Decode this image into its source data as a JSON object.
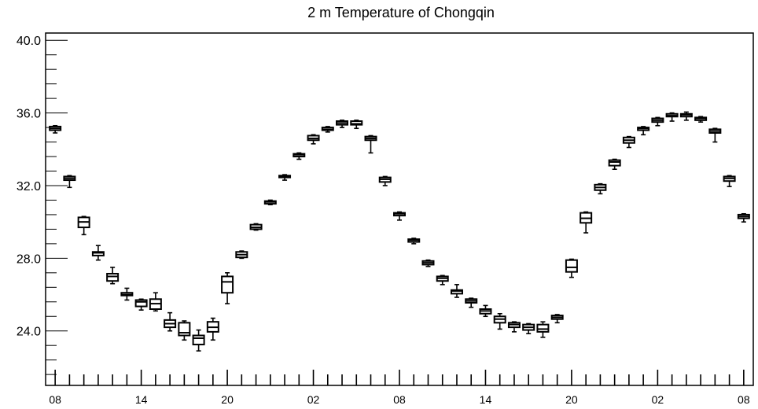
{
  "chart_data": {
    "type": "boxplot",
    "title": "2 m Temperature of Chongqin",
    "xlabel": "",
    "ylabel": "",
    "ylim": [
      21.0,
      40.4
    ],
    "y_major_ticks": [
      24.0,
      28.0,
      32.0,
      36.0,
      40.0
    ],
    "y_minor_step": 0.8,
    "x_tick_labels": [
      "08",
      "14",
      "20",
      "02",
      "08",
      "14",
      "20",
      "02",
      "08"
    ],
    "x_tick_positions_hours": [
      0,
      18,
      36,
      54,
      72,
      90,
      108,
      126,
      144
    ],
    "x_range_hours": [
      -2,
      146
    ],
    "x_minor_step_hours": 3,
    "grid": false,
    "legend": "none",
    "series_color": "#000000",
    "boxes": [
      {
        "t": 0,
        "low": 34.9,
        "q1": 35.05,
        "median": 35.15,
        "q3": 35.25,
        "high": 35.3
      },
      {
        "t": 3,
        "low": 31.9,
        "q1": 32.3,
        "median": 32.4,
        "q3": 32.5,
        "high": 32.55
      },
      {
        "t": 6,
        "low": 29.3,
        "q1": 29.7,
        "median": 30.0,
        "q3": 30.25,
        "high": 30.3
      },
      {
        "t": 9,
        "low": 27.9,
        "q1": 28.15,
        "median": 28.3,
        "q3": 28.35,
        "high": 28.7
      },
      {
        "t": 12,
        "low": 26.6,
        "q1": 26.75,
        "median": 27.0,
        "q3": 27.15,
        "high": 27.5
      },
      {
        "t": 15,
        "low": 25.7,
        "q1": 25.95,
        "median": 26.0,
        "q3": 26.1,
        "high": 26.35
      },
      {
        "t": 18,
        "low": 25.15,
        "q1": 25.35,
        "median": 25.6,
        "q3": 25.7,
        "high": 25.75
      },
      {
        "t": 21,
        "low": 25.1,
        "q1": 25.2,
        "median": 25.5,
        "q3": 25.75,
        "high": 26.1
      },
      {
        "t": 24,
        "low": 24.0,
        "q1": 24.2,
        "median": 24.4,
        "q3": 24.6,
        "high": 25.0
      },
      {
        "t": 27,
        "low": 23.5,
        "q1": 23.75,
        "median": 23.9,
        "q3": 24.45,
        "high": 24.55
      },
      {
        "t": 30,
        "low": 22.9,
        "q1": 23.25,
        "median": 23.6,
        "q3": 23.75,
        "high": 24.05
      },
      {
        "t": 33,
        "low": 23.5,
        "q1": 23.95,
        "median": 24.2,
        "q3": 24.5,
        "high": 24.7
      },
      {
        "t": 36,
        "low": 25.5,
        "q1": 26.1,
        "median": 26.7,
        "q3": 27.0,
        "high": 27.2
      },
      {
        "t": 39,
        "low": 28.0,
        "q1": 28.05,
        "median": 28.2,
        "q3": 28.35,
        "high": 28.4
      },
      {
        "t": 42,
        "low": 29.55,
        "q1": 29.6,
        "median": 29.7,
        "q3": 29.85,
        "high": 29.9
      },
      {
        "t": 45,
        "low": 30.95,
        "q1": 31.0,
        "median": 31.1,
        "q3": 31.15,
        "high": 31.2
      },
      {
        "t": 48,
        "low": 32.3,
        "q1": 32.45,
        "median": 32.5,
        "q3": 32.55,
        "high": 32.6
      },
      {
        "t": 51,
        "low": 33.45,
        "q1": 33.6,
        "median": 33.7,
        "q3": 33.75,
        "high": 33.8
      },
      {
        "t": 54,
        "low": 34.3,
        "q1": 34.5,
        "median": 34.6,
        "q3": 34.75,
        "high": 34.8
      },
      {
        "t": 57,
        "low": 34.95,
        "q1": 35.05,
        "median": 35.1,
        "q3": 35.2,
        "high": 35.25
      },
      {
        "t": 60,
        "low": 35.2,
        "q1": 35.35,
        "median": 35.45,
        "q3": 35.55,
        "high": 35.6
      },
      {
        "t": 63,
        "low": 35.15,
        "q1": 35.35,
        "median": 35.4,
        "q3": 35.55,
        "high": 35.6
      },
      {
        "t": 66,
        "low": 33.8,
        "q1": 34.5,
        "median": 34.6,
        "q3": 34.7,
        "high": 34.75
      },
      {
        "t": 69,
        "low": 32.0,
        "q1": 32.2,
        "median": 32.35,
        "q3": 32.45,
        "high": 32.5
      },
      {
        "t": 72,
        "low": 30.1,
        "q1": 30.35,
        "median": 30.45,
        "q3": 30.5,
        "high": 30.55
      },
      {
        "t": 75,
        "low": 28.8,
        "q1": 28.9,
        "median": 29.0,
        "q3": 29.05,
        "high": 29.1
      },
      {
        "t": 78,
        "low": 27.55,
        "q1": 27.65,
        "median": 27.75,
        "q3": 27.85,
        "high": 27.9
      },
      {
        "t": 81,
        "low": 26.55,
        "q1": 26.75,
        "median": 26.9,
        "q3": 27.0,
        "high": 27.05
      },
      {
        "t": 84,
        "low": 25.85,
        "q1": 26.05,
        "median": 26.2,
        "q3": 26.25,
        "high": 26.55
      },
      {
        "t": 87,
        "low": 25.3,
        "q1": 25.55,
        "median": 25.65,
        "q3": 25.75,
        "high": 25.8
      },
      {
        "t": 90,
        "low": 24.8,
        "q1": 24.95,
        "median": 25.1,
        "q3": 25.2,
        "high": 25.4
      },
      {
        "t": 93,
        "low": 24.1,
        "q1": 24.45,
        "median": 24.65,
        "q3": 24.8,
        "high": 24.95
      },
      {
        "t": 96,
        "low": 23.95,
        "q1": 24.2,
        "median": 24.35,
        "q3": 24.45,
        "high": 24.5
      },
      {
        "t": 99,
        "low": 23.85,
        "q1": 24.05,
        "median": 24.2,
        "q3": 24.35,
        "high": 24.4
      },
      {
        "t": 102,
        "low": 23.65,
        "q1": 23.95,
        "median": 24.1,
        "q3": 24.35,
        "high": 24.5
      },
      {
        "t": 105,
        "low": 24.45,
        "q1": 24.65,
        "median": 24.75,
        "q3": 24.85,
        "high": 24.9
      },
      {
        "t": 108,
        "low": 26.95,
        "q1": 27.25,
        "median": 27.5,
        "q3": 27.9,
        "high": 27.95
      },
      {
        "t": 111,
        "low": 29.4,
        "q1": 29.95,
        "median": 30.2,
        "q3": 30.5,
        "high": 30.55
      },
      {
        "t": 114,
        "low": 31.55,
        "q1": 31.75,
        "median": 31.9,
        "q3": 32.05,
        "high": 32.1
      },
      {
        "t": 117,
        "low": 32.9,
        "q1": 33.1,
        "median": 33.3,
        "q3": 33.4,
        "high": 33.45
      },
      {
        "t": 120,
        "low": 34.1,
        "q1": 34.35,
        "median": 34.5,
        "q3": 34.65,
        "high": 34.7
      },
      {
        "t": 123,
        "low": 34.8,
        "q1": 35.05,
        "median": 35.15,
        "q3": 35.2,
        "high": 35.25
      },
      {
        "t": 126,
        "low": 35.3,
        "q1": 35.5,
        "median": 35.6,
        "q3": 35.7,
        "high": 35.75
      },
      {
        "t": 129,
        "low": 35.55,
        "q1": 35.8,
        "median": 35.85,
        "q3": 35.95,
        "high": 36.0
      },
      {
        "t": 132,
        "low": 35.6,
        "q1": 35.8,
        "median": 35.9,
        "q3": 35.95,
        "high": 36.05
      },
      {
        "t": 135,
        "low": 35.5,
        "q1": 35.6,
        "median": 35.7,
        "q3": 35.75,
        "high": 35.8
      },
      {
        "t": 138,
        "low": 34.4,
        "q1": 34.9,
        "median": 35.0,
        "q3": 35.1,
        "high": 35.15
      },
      {
        "t": 141,
        "low": 31.95,
        "q1": 32.25,
        "median": 32.4,
        "q3": 32.5,
        "high": 32.55
      },
      {
        "t": 144,
        "low": 30.0,
        "q1": 30.2,
        "median": 30.3,
        "q3": 30.4,
        "high": 30.45
      }
    ]
  }
}
